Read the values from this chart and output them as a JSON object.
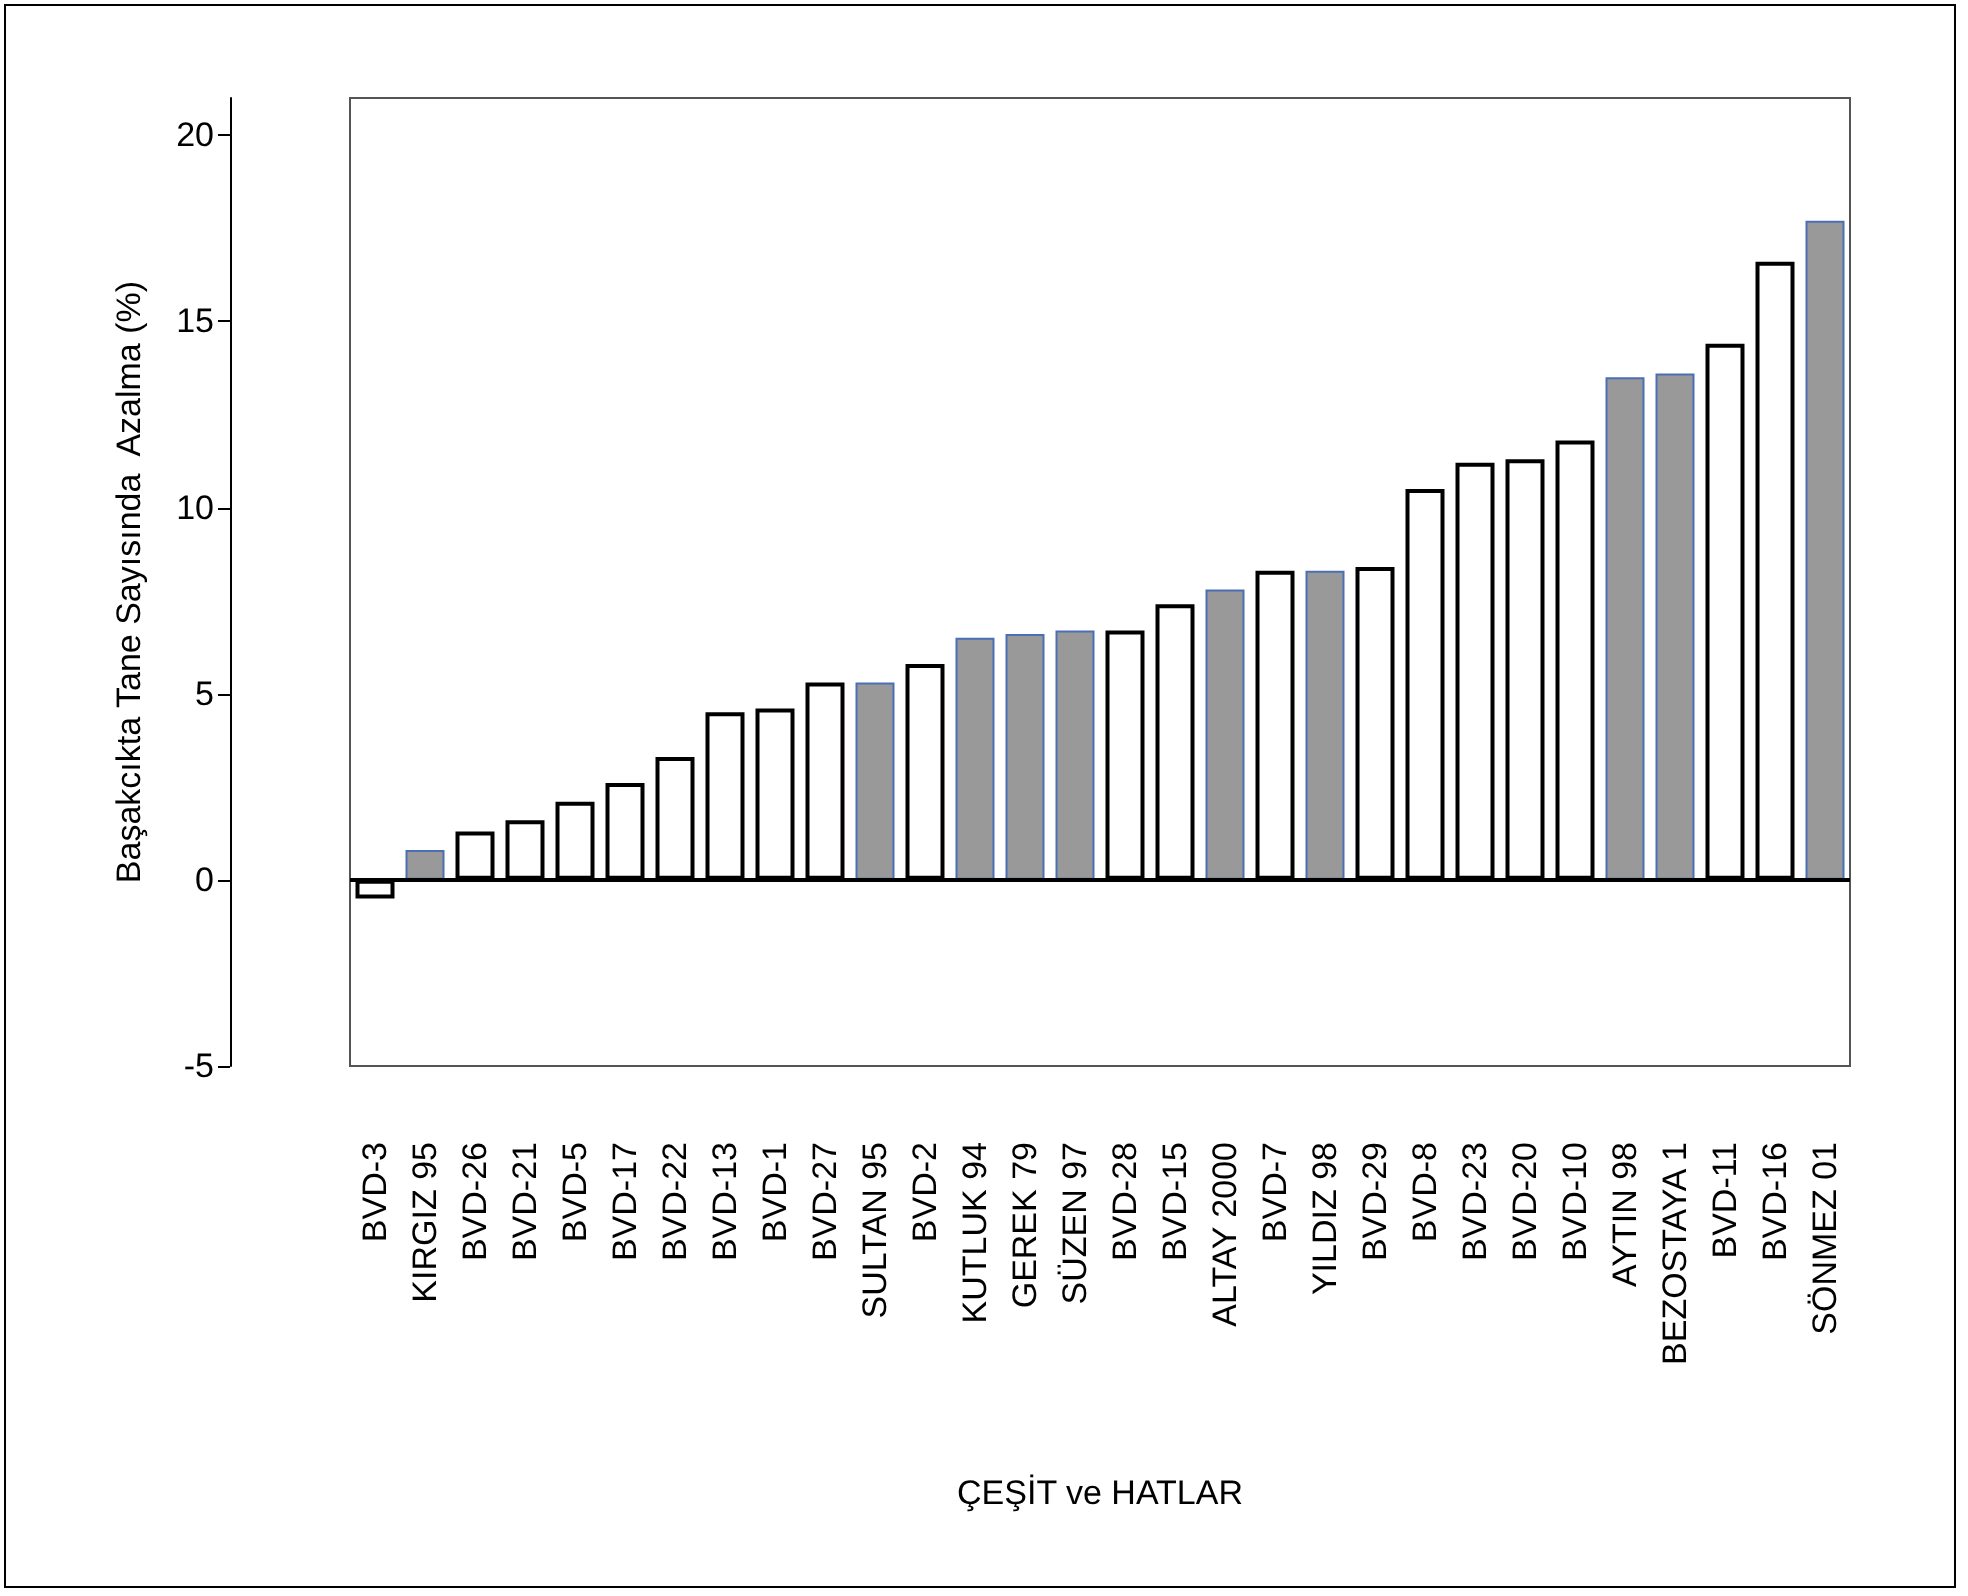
{
  "chart_data": {
    "type": "bar",
    "xlabel": "ÇEŞİT ve HATLAR",
    "ylabel": "Başakcıkta Tane Sayısında  Azalma (%)",
    "categories": [
      "BVD-3",
      "KIRGIZ 95",
      "BVD-26",
      "BVD-21",
      "BVD-5",
      "BVD-17",
      "BVD-22",
      "BVD-13",
      "BVD-1",
      "BVD-27",
      "SULTAN 95",
      "BVD-2",
      "KUTLUK 94",
      "GEREK 79",
      "SÜZEN 97",
      "BVD-28",
      "BVD-15",
      "ALTAY 2000",
      "BVD-7",
      "YILDIZ 98",
      "BVD-29",
      "BVD-8",
      "BVD-23",
      "BVD-20",
      "BVD-10",
      "AYTIN 98",
      "BEZOSTAYA 1",
      "BVD-11",
      "BVD-16",
      "SÖNMEZ 01"
    ],
    "values": [
      -0.5,
      0.8,
      1.3,
      1.6,
      2.1,
      2.6,
      3.3,
      4.5,
      4.6,
      5.3,
      5.3,
      5.8,
      6.5,
      6.6,
      6.7,
      6.7,
      7.4,
      7.8,
      8.3,
      8.3,
      8.4,
      10.5,
      11.2,
      11.3,
      11.8,
      13.5,
      13.6,
      14.4,
      16.6,
      17.7
    ],
    "colors": [
      "#ffffff",
      "#999999",
      "#ffffff",
      "#ffffff",
      "#ffffff",
      "#ffffff",
      "#ffffff",
      "#ffffff",
      "#ffffff",
      "#ffffff",
      "#999999",
      "#ffffff",
      "#999999",
      "#999999",
      "#999999",
      "#ffffff",
      "#ffffff",
      "#999999",
      "#ffffff",
      "#999999",
      "#ffffff",
      "#ffffff",
      "#ffffff",
      "#ffffff",
      "#ffffff",
      "#999999",
      "#999999",
      "#ffffff",
      "#ffffff",
      "#999999"
    ],
    "ylim": [
      -5,
      21
    ],
    "yticks": [
      -5,
      0,
      5,
      10,
      15,
      20
    ],
    "ref_lines": [
      {
        "axis": "y",
        "value": 0,
        "color": "#000000"
      }
    ],
    "grid": false
  }
}
